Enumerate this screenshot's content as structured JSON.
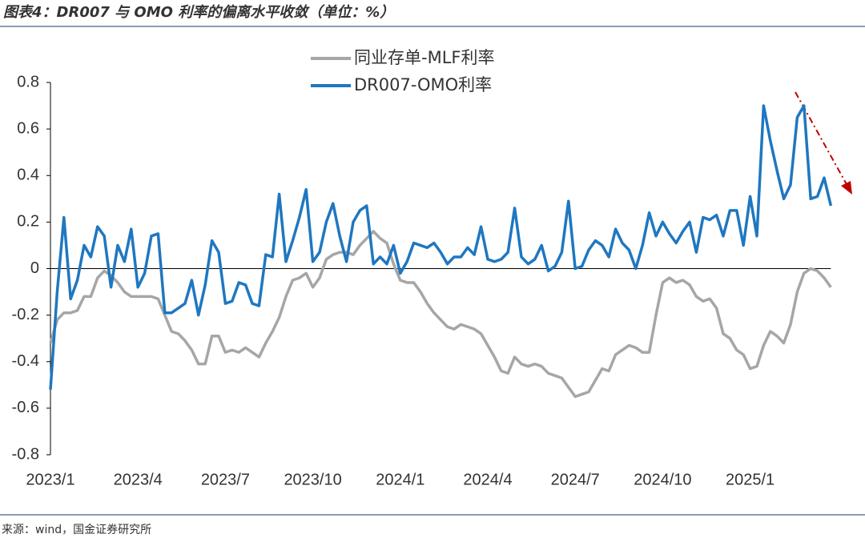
{
  "chart_data": {
    "type": "line",
    "title": "图表4：DR007 与 OMO 利率的偏离水平收敛（单位：%）",
    "source": "来源：wind，国金证券研究所",
    "categories": [
      "2023/1",
      null,
      null,
      null,
      null,
      null,
      null,
      null,
      null,
      null,
      null,
      null,
      null,
      "2023/4",
      null,
      null,
      null,
      null,
      null,
      null,
      null,
      null,
      null,
      null,
      null,
      null,
      "2023/7",
      null,
      null,
      null,
      null,
      null,
      null,
      null,
      null,
      null,
      null,
      null,
      null,
      "2023/10",
      null,
      null,
      null,
      null,
      null,
      null,
      null,
      null,
      null,
      null,
      null,
      null,
      "2024/1",
      null,
      null,
      null,
      null,
      null,
      null,
      null,
      null,
      null,
      null,
      null,
      null,
      "2024/4",
      null,
      null,
      null,
      null,
      null,
      null,
      null,
      null,
      null,
      null,
      null,
      null,
      "2024/7",
      null,
      null,
      null,
      null,
      null,
      null,
      null,
      null,
      null,
      null,
      null,
      null,
      "2024/10",
      null,
      null,
      null,
      null,
      null,
      null,
      null,
      null,
      null,
      null,
      null,
      null,
      "2025/1",
      null,
      null,
      null,
      null,
      null,
      null,
      null,
      null,
      null,
      null,
      null,
      null
    ],
    "series": [
      {
        "name": "同业存单-MLF利率",
        "color": "#a6a6a6",
        "values": [
          -0.32,
          -0.22,
          -0.19,
          -0.19,
          -0.18,
          -0.12,
          -0.12,
          -0.04,
          -0.01,
          -0.03,
          -0.06,
          -0.1,
          -0.12,
          -0.12,
          -0.12,
          -0.12,
          -0.13,
          -0.2,
          -0.27,
          -0.28,
          -0.31,
          -0.35,
          -0.41,
          -0.41,
          -0.29,
          -0.29,
          -0.36,
          -0.35,
          -0.36,
          -0.34,
          -0.36,
          -0.38,
          -0.32,
          -0.27,
          -0.21,
          -0.12,
          -0.05,
          -0.04,
          -0.02,
          -0.08,
          -0.04,
          0.04,
          0.06,
          0.07,
          0.07,
          0.06,
          0.1,
          0.13,
          0.16,
          0.13,
          0.11,
          0.02,
          -0.05,
          -0.06,
          -0.06,
          -0.1,
          -0.15,
          -0.19,
          -0.22,
          -0.25,
          -0.26,
          -0.24,
          -0.25,
          -0.26,
          -0.28,
          -0.33,
          -0.38,
          -0.44,
          -0.45,
          -0.38,
          -0.41,
          -0.42,
          -0.41,
          -0.42,
          -0.45,
          -0.46,
          -0.47,
          -0.51,
          -0.55,
          -0.54,
          -0.53,
          -0.48,
          -0.43,
          -0.44,
          -0.37,
          -0.35,
          -0.33,
          -0.34,
          -0.36,
          -0.36,
          -0.2,
          -0.06,
          -0.04,
          -0.06,
          -0.05,
          -0.07,
          -0.12,
          -0.14,
          -0.13,
          -0.17,
          -0.28,
          -0.3,
          -0.35,
          -0.37,
          -0.43,
          -0.42,
          -0.33,
          -0.27,
          -0.29,
          -0.32,
          -0.24,
          -0.1,
          -0.02,
          0.0,
          -0.01,
          -0.04,
          -0.08
        ]
      },
      {
        "name": "DR007-OMO利率",
        "color": "#1f77c0",
        "values": [
          -0.52,
          -0.1,
          0.22,
          -0.13,
          -0.05,
          0.1,
          0.05,
          0.18,
          0.14,
          -0.08,
          0.1,
          0.03,
          0.17,
          -0.08,
          -0.02,
          0.14,
          0.15,
          -0.19,
          -0.19,
          -0.17,
          -0.15,
          -0.05,
          -0.2,
          -0.07,
          0.12,
          0.07,
          -0.15,
          -0.14,
          -0.06,
          -0.07,
          -0.15,
          -0.16,
          0.06,
          0.05,
          0.32,
          0.03,
          0.12,
          0.22,
          0.34,
          0.03,
          0.07,
          0.2,
          0.28,
          0.14,
          0.03,
          0.2,
          0.25,
          0.27,
          0.02,
          0.05,
          0.02,
          0.1,
          -0.02,
          0.03,
          0.11,
          0.1,
          0.09,
          0.11,
          0.07,
          0.02,
          0.05,
          0.05,
          0.09,
          0.06,
          0.18,
          0.04,
          0.03,
          0.04,
          0.07,
          0.26,
          0.05,
          0.02,
          0.04,
          0.1,
          -0.01,
          0.01,
          0.07,
          0.29,
          0.0,
          0.01,
          0.08,
          0.12,
          0.1,
          0.05,
          0.17,
          0.11,
          0.08,
          0.0,
          0.1,
          0.24,
          0.14,
          0.2,
          0.15,
          0.11,
          0.16,
          0.2,
          0.07,
          0.22,
          0.21,
          0.23,
          0.14,
          0.25,
          0.25,
          0.1,
          0.31,
          0.14,
          0.7,
          0.55,
          0.42,
          0.3,
          0.36,
          0.65,
          0.7,
          0.3,
          0.31,
          0.39,
          0.27
        ]
      }
    ],
    "ylim": [
      -0.8,
      0.8
    ],
    "yticks": [
      -0.8,
      -0.6,
      -0.4,
      -0.2,
      0,
      0.2,
      0.4,
      0.6,
      0.8
    ]
  }
}
